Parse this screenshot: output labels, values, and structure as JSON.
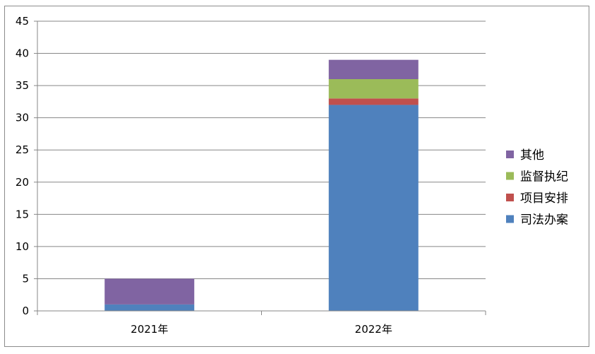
{
  "chart_data": {
    "type": "bar",
    "stacked": true,
    "title": "",
    "xlabel": "",
    "ylabel": "",
    "categories": [
      "2021年",
      "2022年"
    ],
    "series": [
      {
        "name": "司法办案",
        "values": [
          1,
          32
        ],
        "color": "#4f81bd"
      },
      {
        "name": "项目安排",
        "values": [
          0,
          1
        ],
        "color": "#c0504d"
      },
      {
        "name": "监督执纪",
        "values": [
          0,
          3
        ],
        "color": "#9bbb59"
      },
      {
        "name": "其他",
        "values": [
          4,
          3
        ],
        "color": "#8064a2"
      }
    ],
    "ylim": [
      0,
      45
    ],
    "yticks": [
      "0",
      "5",
      "10",
      "15",
      "20",
      "25",
      "30",
      "35",
      "40",
      "45"
    ],
    "grid": true,
    "legend": "right"
  }
}
